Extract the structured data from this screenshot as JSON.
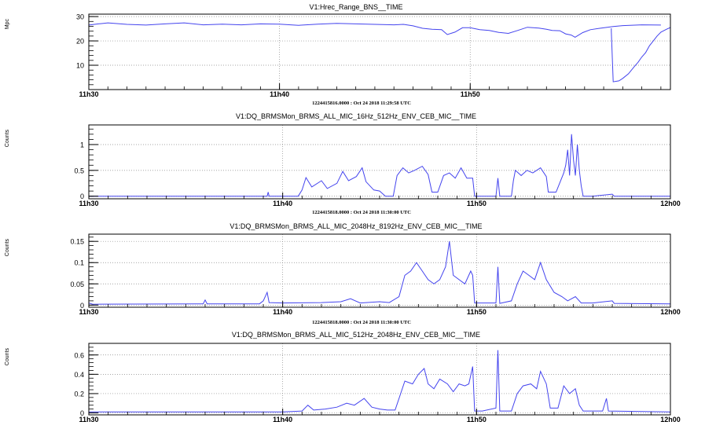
{
  "chart_data": [
    {
      "type": "line",
      "title": "V1:Hrec_Range_BNS__TIME",
      "ylabel": "Mpc",
      "time_range_label": "1224415816.0000 : Oct 24 2018 11:29:58 UTC",
      "xlim": [
        0,
        30.5
      ],
      "ylim": [
        0,
        31
      ],
      "yticks": [
        10,
        20,
        30
      ],
      "xticks": [
        {
          "x": 0,
          "label": "11h30"
        },
        {
          "x": 10,
          "label": "11h40"
        },
        {
          "x": 20,
          "label": "11h50"
        }
      ],
      "grid": true,
      "series_color": "#4444ee",
      "series": [
        {
          "points": [
            [
              0,
              26.5
            ],
            [
              0.5,
              27
            ],
            [
              1,
              27.4
            ],
            [
              2,
              26.8
            ],
            [
              3,
              26.5
            ],
            [
              4,
              27
            ],
            [
              5,
              27.4
            ],
            [
              6,
              26.6
            ],
            [
              7,
              26.9
            ],
            [
              8,
              26.6
            ],
            [
              9,
              27
            ],
            [
              10,
              26.9
            ],
            [
              11,
              26.4
            ],
            [
              12,
              26.9
            ],
            [
              13,
              27.2
            ],
            [
              14,
              27
            ],
            [
              15,
              26.8
            ],
            [
              16,
              26.6
            ],
            [
              16.5,
              26.8
            ],
            [
              17,
              26.2
            ],
            [
              17.5,
              25.2
            ],
            [
              18,
              24.8
            ],
            [
              18.5,
              24.6
            ],
            [
              18.8,
              22.6
            ],
            [
              19.2,
              23.6
            ],
            [
              19.6,
              25.4
            ],
            [
              20,
              25.4
            ],
            [
              20.5,
              24.6
            ],
            [
              21,
              24.3
            ],
            [
              21.5,
              23.5
            ],
            [
              22,
              23.1
            ],
            [
              22.5,
              24.3
            ],
            [
              23,
              25.6
            ],
            [
              23.6,
              25.3
            ],
            [
              24,
              24.8
            ],
            [
              24.3,
              24.3
            ],
            [
              24.7,
              24.2
            ],
            [
              25,
              22.9
            ],
            [
              25.3,
              22.4
            ],
            [
              25.5,
              21.5
            ],
            [
              25.9,
              23.4
            ],
            [
              26.3,
              24.6
            ],
            [
              26.8,
              25.2
            ],
            [
              27.5,
              25.9
            ],
            [
              28,
              26.3
            ],
            [
              29,
              26.6
            ],
            [
              30,
              26.5
            ]
          ]
        },
        {
          "points": [
            [
              27.4,
              25.2
            ],
            [
              27.4,
              24
            ],
            [
              27.5,
              3.2
            ],
            [
              27.8,
              3.6
            ],
            [
              28,
              4.6
            ],
            [
              28.3,
              6.5
            ],
            [
              28.6,
              9.4
            ],
            [
              28.8,
              11.2
            ],
            [
              29,
              13.4
            ],
            [
              29.2,
              15.2
            ],
            [
              29.4,
              18
            ],
            [
              29.6,
              20
            ],
            [
              29.8,
              22
            ],
            [
              30,
              23.6
            ],
            [
              30.3,
              24.8
            ],
            [
              30.5,
              25.5
            ]
          ]
        }
      ]
    },
    {
      "type": "line",
      "title": "V1:DQ_BRMSMon_BRMS_ALL_MIC_16Hz_512Hz_ENV_CEB_MIC__TIME",
      "ylabel": "Counts",
      "time_range_label": "1224415818.0000 : Oct 24 2018 11:30:00 UTC",
      "xlim": [
        0,
        30
      ],
      "ylim": [
        -0.05,
        1.38
      ],
      "yticks": [
        0,
        0.5,
        1
      ],
      "xticks": [
        {
          "x": 0,
          "label": "11h30"
        },
        {
          "x": 10,
          "label": "11h40"
        },
        {
          "x": 20,
          "label": "11h50"
        },
        {
          "x": 30,
          "label": "12h00"
        }
      ],
      "grid": true,
      "series_color": "#4444ee",
      "series": [
        {
          "points": [
            [
              0,
              0
            ],
            [
              9.2,
              0
            ],
            [
              9.25,
              0.08
            ],
            [
              9.3,
              0
            ],
            [
              10.8,
              0
            ],
            [
              11.0,
              0.12
            ],
            [
              11.2,
              0.36
            ],
            [
              11.5,
              0.18
            ],
            [
              12.0,
              0.3
            ],
            [
              12.3,
              0.15
            ],
            [
              12.8,
              0.25
            ],
            [
              13.1,
              0.48
            ],
            [
              13.4,
              0.3
            ],
            [
              13.8,
              0.38
            ],
            [
              14.1,
              0.55
            ],
            [
              14.3,
              0.28
            ],
            [
              14.7,
              0.12
            ],
            [
              15.0,
              0.1
            ],
            [
              15.3,
              0
            ],
            [
              15.7,
              0
            ],
            [
              15.9,
              0.4
            ],
            [
              16.2,
              0.55
            ],
            [
              16.5,
              0.45
            ],
            [
              16.8,
              0.5
            ],
            [
              17.2,
              0.58
            ],
            [
              17.5,
              0.42
            ],
            [
              17.7,
              0.08
            ],
            [
              18.0,
              0.08
            ],
            [
              18.3,
              0.4
            ],
            [
              18.6,
              0.45
            ],
            [
              18.9,
              0.35
            ],
            [
              19.2,
              0.55
            ],
            [
              19.5,
              0.35
            ],
            [
              19.8,
              0.35
            ],
            [
              19.9,
              0
            ],
            [
              20.0,
              0
            ],
            [
              20.4,
              0
            ],
            [
              21.0,
              0
            ],
            [
              21.1,
              0.35
            ],
            [
              21.2,
              0
            ],
            [
              21.8,
              0
            ],
            [
              21.9,
              0.3
            ],
            [
              22.0,
              0.5
            ],
            [
              22.3,
              0.4
            ],
            [
              22.6,
              0.5
            ],
            [
              22.9,
              0.45
            ],
            [
              23.3,
              0.55
            ],
            [
              23.6,
              0.38
            ],
            [
              23.7,
              0.08
            ],
            [
              24.1,
              0.08
            ],
            [
              24.5,
              0.45
            ],
            [
              24.6,
              0.6
            ],
            [
              24.7,
              0.9
            ],
            [
              24.8,
              0.4
            ],
            [
              24.9,
              1.2
            ],
            [
              25.0,
              0.7
            ],
            [
              25.1,
              0.4
            ],
            [
              25.2,
              1.0
            ],
            [
              25.3,
              0.5
            ],
            [
              25.4,
              0.2
            ],
            [
              25.5,
              0
            ],
            [
              26,
              0
            ],
            [
              27,
              0.04
            ],
            [
              27.1,
              0
            ],
            [
              28,
              0
            ],
            [
              30,
              0
            ]
          ]
        }
      ]
    },
    {
      "type": "line",
      "title": "V1:DQ_BRMSMon_BRMS_ALL_MIC_2048Hz_8192Hz_ENV_CEB_MIC__TIME",
      "ylabel": "Counts",
      "time_range_label": "1224415818.0000 : Oct 24 2018 11:30:00 UTC",
      "xlim": [
        0,
        30
      ],
      "ylim": [
        -0.005,
        0.167
      ],
      "yticks": [
        0,
        0.05,
        0.1,
        0.15
      ],
      "xticks": [
        {
          "x": 0,
          "label": "11h30"
        },
        {
          "x": 10,
          "label": "11h40"
        },
        {
          "x": 20,
          "label": "11h50"
        },
        {
          "x": 30,
          "label": "12h00"
        }
      ],
      "grid": true,
      "series_color": "#4444ee",
      "series": [
        {
          "points": [
            [
              0,
              0.005
            ],
            [
              0.2,
              0.002
            ],
            [
              5.9,
              0.003
            ],
            [
              6.0,
              0.012
            ],
            [
              6.1,
              0.003
            ],
            [
              8.8,
              0.003
            ],
            [
              9.0,
              0.01
            ],
            [
              9.2,
              0.03
            ],
            [
              9.3,
              0.006
            ],
            [
              10,
              0.005
            ],
            [
              12,
              0.006
            ],
            [
              13,
              0.008
            ],
            [
              13.5,
              0.015
            ],
            [
              14,
              0.005
            ],
            [
              15,
              0.008
            ],
            [
              15.5,
              0.006
            ],
            [
              16.0,
              0.02
            ],
            [
              16.3,
              0.07
            ],
            [
              16.6,
              0.08
            ],
            [
              16.9,
              0.1
            ],
            [
              17.2,
              0.08
            ],
            [
              17.5,
              0.06
            ],
            [
              17.8,
              0.05
            ],
            [
              18.1,
              0.06
            ],
            [
              18.4,
              0.09
            ],
            [
              18.6,
              0.15
            ],
            [
              18.8,
              0.07
            ],
            [
              19.1,
              0.06
            ],
            [
              19.4,
              0.05
            ],
            [
              19.7,
              0.08
            ],
            [
              19.8,
              0.07
            ],
            [
              19.9,
              0.005
            ],
            [
              20.4,
              0.005
            ],
            [
              21.0,
              0.005
            ],
            [
              21.1,
              0.09
            ],
            [
              21.2,
              0.004
            ],
            [
              21.8,
              0.01
            ],
            [
              22.1,
              0.05
            ],
            [
              22.4,
              0.08
            ],
            [
              22.7,
              0.07
            ],
            [
              23.0,
              0.06
            ],
            [
              23.3,
              0.1
            ],
            [
              23.6,
              0.06
            ],
            [
              24.0,
              0.03
            ],
            [
              24.4,
              0.02
            ],
            [
              24.7,
              0.01
            ],
            [
              25.1,
              0.02
            ],
            [
              25.4,
              0.005
            ],
            [
              26,
              0.005
            ],
            [
              27,
              0.01
            ],
            [
              27.1,
              0.004
            ],
            [
              30,
              0.003
            ]
          ]
        }
      ]
    },
    {
      "type": "line",
      "title": "V1:DQ_BRMSMon_BRMS_ALL_MIC_512Hz_2048Hz_ENV_CEB_MIC__TIME",
      "ylabel": "Counts",
      "time_range_label": "1224415818.0000 : Oct 24 2018 11:30:00 UTC",
      "xlim": [
        0,
        30
      ],
      "ylim": [
        -0.02,
        0.72
      ],
      "yticks": [
        0,
        0.2,
        0.4,
        0.6
      ],
      "xticks": [
        {
          "x": 0,
          "label": "11h30"
        },
        {
          "x": 10,
          "label": "11h40"
        },
        {
          "x": 20,
          "label": "11h50"
        },
        {
          "x": 30,
          "label": "12h00"
        }
      ],
      "grid": true,
      "series_color": "#4444ee",
      "series": [
        {
          "points": [
            [
              0,
              0.01
            ],
            [
              10,
              0.01
            ],
            [
              11.0,
              0.02
            ],
            [
              11.3,
              0.08
            ],
            [
              11.6,
              0.03
            ],
            [
              12.2,
              0.04
            ],
            [
              12.8,
              0.06
            ],
            [
              13.3,
              0.1
            ],
            [
              13.7,
              0.08
            ],
            [
              14.2,
              0.15
            ],
            [
              14.6,
              0.06
            ],
            [
              15.0,
              0.04
            ],
            [
              15.4,
              0.03
            ],
            [
              15.8,
              0.03
            ],
            [
              16.0,
              0.15
            ],
            [
              16.3,
              0.33
            ],
            [
              16.7,
              0.3
            ],
            [
              17.0,
              0.4
            ],
            [
              17.3,
              0.46
            ],
            [
              17.5,
              0.3
            ],
            [
              17.8,
              0.25
            ],
            [
              18.1,
              0.35
            ],
            [
              18.5,
              0.3
            ],
            [
              18.8,
              0.22
            ],
            [
              19.1,
              0.3
            ],
            [
              19.4,
              0.28
            ],
            [
              19.6,
              0.3
            ],
            [
              19.8,
              0.48
            ],
            [
              19.9,
              0.02
            ],
            [
              20.3,
              0.02
            ],
            [
              21.0,
              0.05
            ],
            [
              21.1,
              0.65
            ],
            [
              21.2,
              0.02
            ],
            [
              21.8,
              0.02
            ],
            [
              22.1,
              0.2
            ],
            [
              22.4,
              0.28
            ],
            [
              22.8,
              0.3
            ],
            [
              23.1,
              0.25
            ],
            [
              23.3,
              0.43
            ],
            [
              23.6,
              0.3
            ],
            [
              23.8,
              0.05
            ],
            [
              24.2,
              0.05
            ],
            [
              24.5,
              0.28
            ],
            [
              24.8,
              0.2
            ],
            [
              25.1,
              0.25
            ],
            [
              25.3,
              0.08
            ],
            [
              25.5,
              0.02
            ],
            [
              26.5,
              0.02
            ],
            [
              26.7,
              0.15
            ],
            [
              26.8,
              0.02
            ],
            [
              30,
              0.01
            ]
          ]
        }
      ]
    }
  ]
}
